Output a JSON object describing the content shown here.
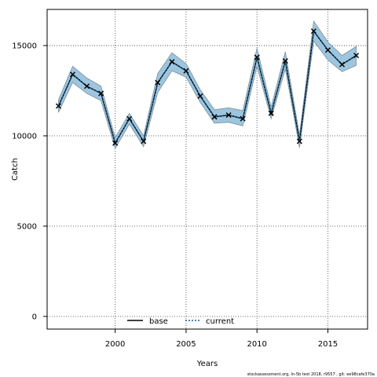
{
  "chart_data": {
    "type": "line",
    "xlabel": "Years",
    "ylabel": "Catch",
    "xlim": [
      1995.2,
      2017.8
    ],
    "ylim": [
      -700,
      17000
    ],
    "x_ticks": [
      2000,
      2005,
      2010,
      2015
    ],
    "y_ticks": [
      0,
      5000,
      10000,
      15000
    ],
    "grid": true,
    "legend_position": "bottom-center",
    "x": [
      1996,
      1997,
      1998,
      1999,
      2000,
      2001,
      2002,
      2003,
      2004,
      2005,
      2006,
      2007,
      2008,
      2009,
      2010,
      2011,
      2012,
      2013,
      2014,
      2015,
      2016,
      2017
    ],
    "observed": [
      11650,
      13400,
      12750,
      12350,
      9600,
      10950,
      9700,
      12950,
      14100,
      13600,
      12200,
      11050,
      11150,
      10950,
      14350,
      11250,
      14150,
      9700,
      15800,
      14750,
      13950,
      14450
    ],
    "series": [
      {
        "name": "base",
        "line_style": "solid",
        "color": "#000000",
        "values": [
          11650,
          13400,
          12750,
          12350,
          9600,
          10950,
          9700,
          12950,
          14100,
          13600,
          12200,
          11050,
          11150,
          10950,
          14350,
          11250,
          14150,
          9700,
          15800,
          14750,
          13950,
          14450
        ],
        "lower": [
          11300,
          12950,
          12350,
          11950,
          9300,
          10650,
          9400,
          12400,
          13600,
          13250,
          11850,
          10700,
          10750,
          10550,
          13850,
          10950,
          13700,
          9350,
          15250,
          14200,
          13550,
          13900
        ],
        "upper": [
          12000,
          13850,
          13200,
          12750,
          9900,
          11250,
          10000,
          13450,
          14600,
          14000,
          12550,
          11450,
          11550,
          11400,
          14850,
          11600,
          14650,
          10050,
          16350,
          15200,
          14450,
          14950
        ]
      },
      {
        "name": "current",
        "line_style": "dotted",
        "color": "#1f5f8b",
        "values": [
          11650,
          13400,
          12750,
          12350,
          9600,
          10950,
          9700,
          12950,
          14100,
          13600,
          12200,
          11050,
          11150,
          10950,
          14350,
          11250,
          14150,
          9700,
          15800,
          14750,
          13950,
          14450
        ]
      }
    ],
    "band_color": "#9ec5de",
    "band_edge_color": "#7a8e9c",
    "footnote": "stockassessment.org, ln-5b  test  2018, r9557 ,  git: ee98cafe370a"
  }
}
